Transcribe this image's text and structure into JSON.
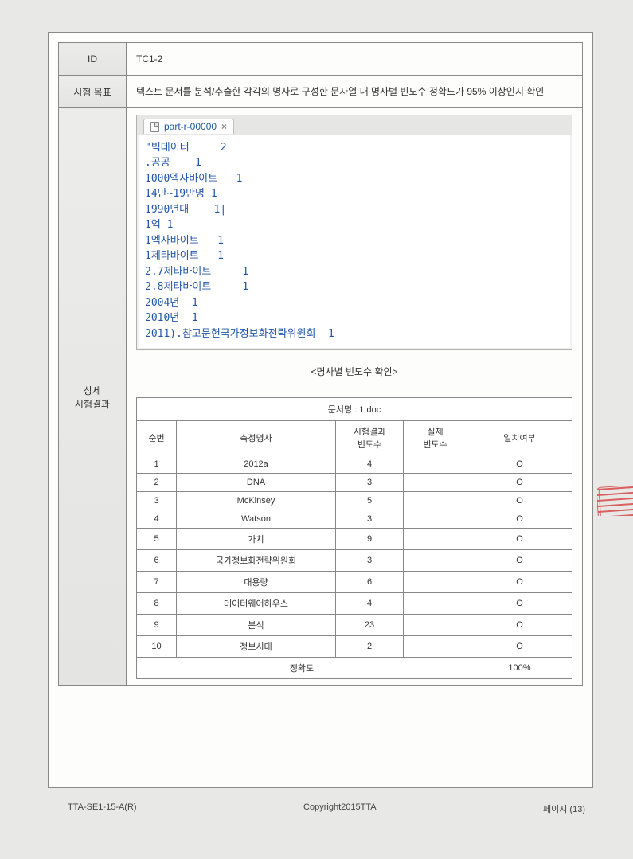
{
  "meta": {
    "id_label": "ID",
    "id_value": "TC1-2",
    "goal_label": "시험 목표",
    "goal_value": "텍스트 문서를 분석/추출한 각각의 명사로 구성한 문자열 내 명사별 빈도수 정확도가 95% 이상인지 확인",
    "result_label": "상세\n시험결과"
  },
  "console": {
    "tab_label": "part-r-00000",
    "lines": [
      "\"빅데이터     2",
      ".공공    1",
      "1000엑사바이트   1",
      "14만~19만명 1",
      "1990년대    1|",
      "1억 1",
      "1엑사바이트   1",
      "1제타바이트   1",
      "2.7제타바이트     1",
      "2.8제타바이트     1",
      "2004년  1",
      "2010년  1",
      "2011).참고문헌국가정보화전략위원회  1"
    ]
  },
  "subcaption": "<명사별 빈도수 확인>",
  "doc_table": {
    "title": "문서명 : 1.doc",
    "headers": {
      "num": "순번",
      "noun": "측정명사",
      "test_count": "시험결과\n빈도수",
      "actual_count": "실제\n빈도수",
      "match": "일치여부"
    },
    "rows": [
      {
        "num": "1",
        "noun": "2012a",
        "test": "4",
        "actual": "",
        "match": "O"
      },
      {
        "num": "2",
        "noun": "DNA",
        "test": "3",
        "actual": "",
        "match": "O"
      },
      {
        "num": "3",
        "noun": "McKinsey",
        "test": "5",
        "actual": "",
        "match": "O"
      },
      {
        "num": "4",
        "noun": "Watson",
        "test": "3",
        "actual": "",
        "match": "O"
      },
      {
        "num": "5",
        "noun": "가치",
        "test": "9",
        "actual": "",
        "match": "O"
      },
      {
        "num": "6",
        "noun": "국가정보화전략위원회",
        "test": "3",
        "actual": "",
        "match": "O"
      },
      {
        "num": "7",
        "noun": "대용량",
        "test": "6",
        "actual": "",
        "match": "O"
      },
      {
        "num": "8",
        "noun": "데이터웨어하우스",
        "test": "4",
        "actual": "",
        "match": "O"
      },
      {
        "num": "9",
        "noun": "분석",
        "test": "23",
        "actual": "",
        "match": "O"
      },
      {
        "num": "10",
        "noun": "정보시대",
        "test": "2",
        "actual": "",
        "match": "O"
      }
    ],
    "accuracy_label": "정확도",
    "accuracy_value": "100%"
  },
  "footer": {
    "left": "TTA-SE1-15-A(R)",
    "center": "Copyright2015TTA",
    "right": "페이지 (13)"
  }
}
